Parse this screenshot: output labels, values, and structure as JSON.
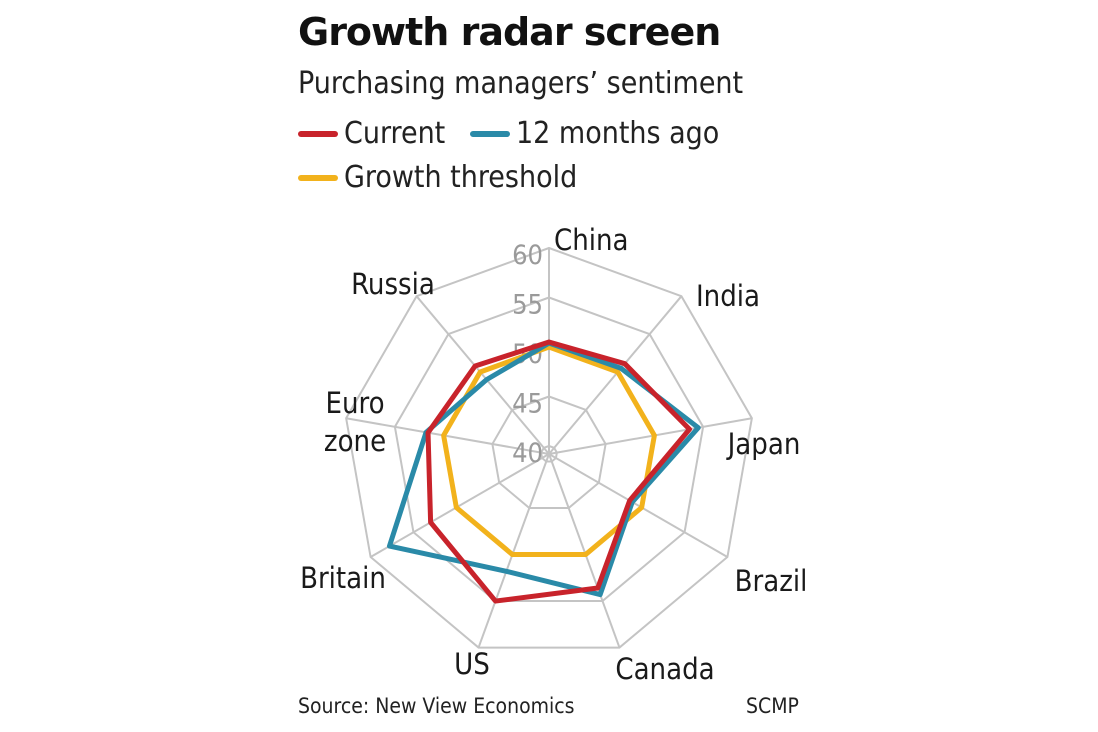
{
  "header": {
    "title": "Growth radar screen",
    "subtitle": "Purchasing managers’ sentiment"
  },
  "footer": {
    "source": "Source: New View Economics",
    "credit": "SCMP"
  },
  "chart_data": {
    "type": "radar",
    "title": "Growth radar screen",
    "subtitle": "Purchasing managers’ sentiment",
    "categories": [
      "China",
      "India",
      "Japan",
      "Brazil",
      "Canada",
      "US",
      "Britain",
      "Euro zone",
      "Russia"
    ],
    "category_lines": [
      [
        "China"
      ],
      [
        "India"
      ],
      [
        "Japan"
      ],
      [
        "Brazil"
      ],
      [
        "Canada"
      ],
      [
        "US"
      ],
      [
        "Britain"
      ],
      [
        "Euro",
        "zone"
      ],
      [
        "Russia"
      ]
    ],
    "rlim": [
      40,
      60
    ],
    "ticks": [
      40,
      45,
      50,
      55,
      60
    ],
    "grid": true,
    "legend_position": "top-left",
    "series": [
      {
        "name": "Growth threshold",
        "color": "#f2b21c",
        "values": [
          50,
          50,
          50,
          50,
          50,
          50,
          50,
          50,
          50
        ]
      },
      {
        "name": "12 months ago",
        "color": "#2a8aa8",
        "values": [
          50.4,
          50.5,
          54.5,
          48.9,
          54.3,
          51.8,
          57.8,
          51.8,
          49.0
        ]
      },
      {
        "name": "Current",
        "color": "#c8232b",
        "values": [
          50.5,
          51.1,
          53.6,
          48.6,
          53.6,
          55.0,
          53.0,
          51.6,
          50.8
        ]
      }
    ]
  }
}
